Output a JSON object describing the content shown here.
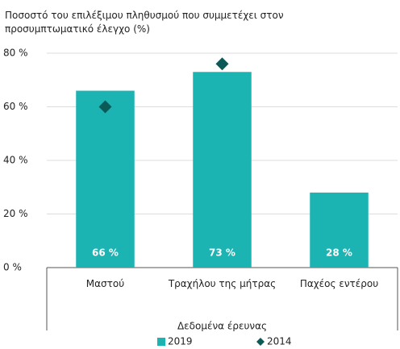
{
  "chart_data": {
    "type": "bar",
    "title": "Ποσοστό του επιλέξιμου πληθυσμού που συμμετέχει στον προσυμπτωματικό έλεγχο (%)",
    "categories": [
      "Μαστού",
      "Τραχήλου της μήτρας",
      "Παχέος εντέρου"
    ],
    "x_group_label": "Δεδομένα έρευνας",
    "series": [
      {
        "name": "2019",
        "color": "#1cb3b3",
        "marker": "bar",
        "values": [
          66,
          73,
          28
        ],
        "value_labels": [
          "66 %",
          "73 %",
          "28 %"
        ]
      },
      {
        "name": "2014",
        "color": "#0b5a58",
        "marker": "diamond",
        "values": [
          60,
          76,
          null
        ]
      }
    ],
    "ylim": [
      0,
      80
    ],
    "yticks": [
      {
        "value": 0,
        "label": "0 %"
      },
      {
        "value": 20,
        "label": "20 %"
      },
      {
        "value": 40,
        "label": "40 %"
      },
      {
        "value": 60,
        "label": "60 %"
      },
      {
        "value": 80,
        "label": "80 %"
      }
    ],
    "grid": true,
    "legend": "bottom"
  }
}
